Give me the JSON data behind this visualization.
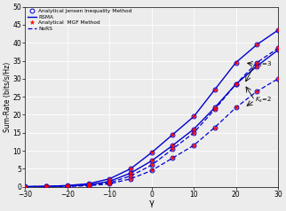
{
  "x": [
    -30,
    -25,
    -20,
    -15,
    -10,
    -5,
    0,
    5,
    10,
    15,
    20,
    25,
    30
  ],
  "rsma_ks3": [
    0.05,
    0.12,
    0.35,
    0.85,
    2.2,
    5.0,
    9.5,
    14.5,
    19.5,
    27.0,
    34.5,
    39.5,
    43.5
  ],
  "rsma_ks2": [
    0.03,
    0.08,
    0.22,
    0.55,
    1.5,
    3.8,
    7.2,
    11.5,
    16.0,
    22.0,
    28.5,
    33.5,
    38.0
  ],
  "nors_ks3": [
    0.02,
    0.06,
    0.18,
    0.42,
    1.1,
    3.0,
    6.0,
    10.5,
    15.0,
    21.5,
    28.5,
    34.5,
    38.5
  ],
  "nors_ks2": [
    0.01,
    0.04,
    0.12,
    0.28,
    0.8,
    2.2,
    4.5,
    8.0,
    11.5,
    16.5,
    22.0,
    26.5,
    30.0
  ],
  "xlim": [
    -30,
    30
  ],
  "ylim": [
    0,
    50
  ],
  "xticks": [
    -30,
    -20,
    -10,
    0,
    10,
    20,
    30
  ],
  "yticks": [
    0,
    5,
    10,
    15,
    20,
    25,
    30,
    35,
    40,
    45,
    50
  ],
  "xlabel": "γ",
  "ylabel": "Sum-Rate (bits/s/Hz)",
  "blue": "#0000cc",
  "red": "#ff0000",
  "legend_entries": [
    "Analytical Jensen Inequality Method",
    "RSMA",
    "Analytical  MGF Method",
    "NoRS"
  ],
  "bg_color": "#ececec"
}
